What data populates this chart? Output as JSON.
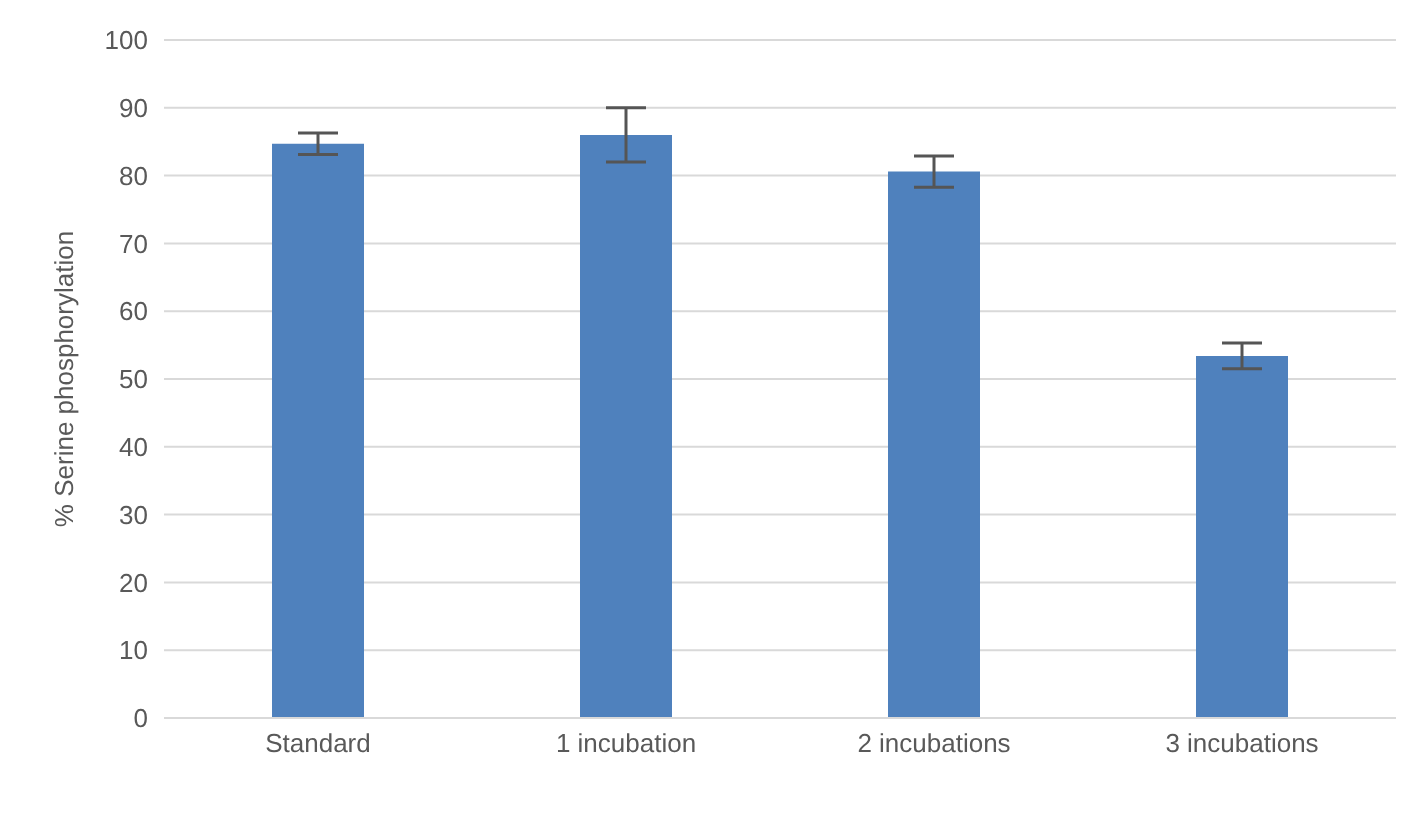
{
  "chart_data": {
    "type": "bar",
    "ylabel": "% Serine phosphorylation",
    "categories": [
      "Standard",
      "1 incubation",
      "2 incubations",
      "3 incubations"
    ],
    "values": [
      84.7,
      86,
      80.6,
      53.4
    ],
    "errors": [
      1.6,
      4,
      2.3,
      1.9
    ],
    "color": "#4f81bd",
    "ylim": [
      0,
      100
    ],
    "yticks": [
      0,
      10,
      20,
      30,
      40,
      50,
      60,
      70,
      80,
      90,
      100
    ],
    "grid": "y"
  }
}
